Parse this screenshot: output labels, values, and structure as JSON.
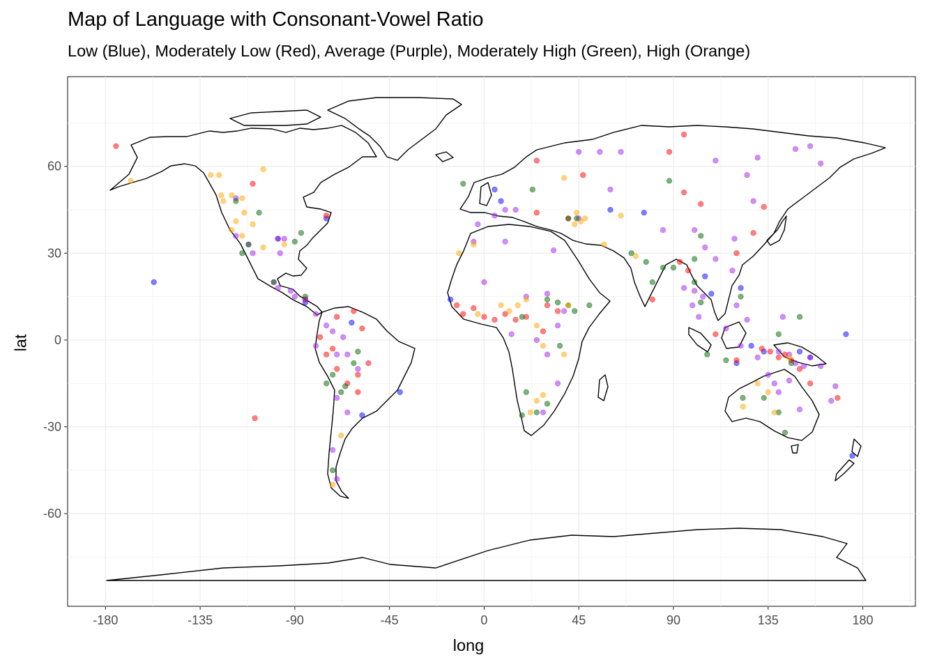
{
  "title": "Map of Language with Consonant-Vowel Ratio",
  "subtitle": "Low (Blue), Moderately Low (Red), Average (Purple), Moderately High (Green), High (Orange)",
  "chart_data": {
    "type": "scatter",
    "xlabel": "long",
    "ylabel": "lat",
    "xlim": [
      -198,
      205
    ],
    "ylim": [
      -92,
      91
    ],
    "xticks": [
      -180,
      -135,
      -90,
      -45,
      0,
      45,
      90,
      135,
      180
    ],
    "yticks": [
      -60,
      -30,
      0,
      30,
      60
    ],
    "xtick_labels": [
      "-180",
      "-135",
      "-90",
      "-45",
      "0",
      "45",
      "90",
      "135",
      "180"
    ],
    "ytick_labels": [
      "-60",
      "-30",
      "0",
      "30",
      "60"
    ],
    "grid": true,
    "colors": {
      "Low": "#0000ff",
      "Moderately Low": "#ff0000",
      "Average": "#a020f0",
      "Moderately High": "#006400",
      "High": "#ffa500"
    },
    "series": [
      {
        "category": "Low",
        "points": [
          [
            -157,
            20
          ],
          [
            -58,
            -26
          ],
          [
            -40,
            -18
          ],
          [
            -85,
            13
          ],
          [
            -63,
            6
          ],
          [
            5,
            52
          ],
          [
            8,
            48
          ],
          [
            -16,
            14
          ],
          [
            76,
            44
          ],
          [
            105,
            22
          ],
          [
            108,
            16
          ],
          [
            120,
            -8
          ],
          [
            127,
            -2
          ],
          [
            133,
            -4
          ],
          [
            150,
            -4
          ],
          [
            155,
            -6
          ],
          [
            172,
            2
          ],
          [
            175,
            -40
          ],
          [
            122,
            18
          ],
          [
            -75,
            42
          ],
          [
            -98,
            35
          ],
          [
            60,
            45
          ]
        ]
      },
      {
        "category": "Moderately Low",
        "points": [
          [
            -175,
            67
          ],
          [
            -110,
            54
          ],
          [
            -75,
            43
          ],
          [
            -109,
            -27
          ],
          [
            -70,
            8
          ],
          [
            -62,
            10
          ],
          [
            -58,
            4
          ],
          [
            -75,
            -5
          ],
          [
            -70,
            -10
          ],
          [
            -60,
            -12
          ],
          [
            -65,
            -15
          ],
          [
            -55,
            -8
          ],
          [
            -72,
            -3
          ],
          [
            25,
            62
          ],
          [
            47,
            57
          ],
          [
            95,
            71
          ],
          [
            88,
            65
          ],
          [
            95,
            51
          ],
          [
            103,
            47
          ],
          [
            128,
            37
          ],
          [
            133,
            46
          ],
          [
            120,
            30
          ],
          [
            80,
            14
          ],
          [
            93,
            27
          ],
          [
            97,
            24
          ],
          [
            -10,
            9
          ],
          [
            0,
            8
          ],
          [
            5,
            7
          ],
          [
            10,
            9
          ],
          [
            20,
            8
          ],
          [
            30,
            12
          ],
          [
            28,
            3
          ],
          [
            35,
            10
          ],
          [
            -13,
            12
          ],
          [
            -5,
            11
          ],
          [
            15,
            7
          ],
          [
            120,
            -7
          ],
          [
            132,
            -3
          ],
          [
            136,
            -4
          ],
          [
            140,
            -6
          ],
          [
            143,
            -5
          ],
          [
            146,
            -7
          ],
          [
            150,
            -10
          ],
          [
            168,
            -20
          ],
          [
            25,
            44
          ],
          [
            40,
            42
          ],
          [
            -85,
            14
          ],
          [
            -78,
            1
          ],
          [
            -60,
            -18
          ],
          [
            110,
            2
          ],
          [
            155,
            -15
          ]
        ]
      },
      {
        "category": "Average",
        "points": [
          [
            -118,
            36
          ],
          [
            -112,
            33
          ],
          [
            -98,
            35
          ],
          [
            -95,
            35
          ],
          [
            -100,
            20
          ],
          [
            -98,
            18
          ],
          [
            -92,
            17
          ],
          [
            -90,
            15
          ],
          [
            -85,
            14
          ],
          [
            -80,
            9
          ],
          [
            -75,
            5
          ],
          [
            -72,
            3
          ],
          [
            -70,
            -5
          ],
          [
            -65,
            -5
          ],
          [
            -60,
            -10
          ],
          [
            -70,
            -20
          ],
          [
            -65,
            -25
          ],
          [
            -72,
            -38
          ],
          [
            -70,
            -48
          ],
          [
            45,
            65
          ],
          [
            55,
            65
          ],
          [
            65,
            65
          ],
          [
            110,
            62
          ],
          [
            130,
            63
          ],
          [
            148,
            66
          ],
          [
            155,
            67
          ],
          [
            160,
            61
          ],
          [
            125,
            57
          ],
          [
            128,
            48
          ],
          [
            45,
            42
          ],
          [
            60,
            52
          ],
          [
            85,
            38
          ],
          [
            100,
            38
          ],
          [
            105,
            32
          ],
          [
            110,
            28
          ],
          [
            118,
            24
          ],
          [
            95,
            18
          ],
          [
            100,
            17
          ],
          [
            104,
            15
          ],
          [
            99,
            12
          ],
          [
            102,
            8
          ],
          [
            115,
            4
          ],
          [
            125,
            7
          ],
          [
            120,
            12
          ],
          [
            0,
            20
          ],
          [
            20,
            15
          ],
          [
            30,
            16
          ],
          [
            35,
            5
          ],
          [
            38,
            10
          ],
          [
            13,
            2
          ],
          [
            25,
            0
          ],
          [
            30,
            -5
          ],
          [
            35,
            -15
          ],
          [
            28,
            -25
          ],
          [
            -3,
            40
          ],
          [
            5,
            43
          ],
          [
            10,
            45
          ],
          [
            15,
            45
          ],
          [
            -5,
            34
          ],
          [
            10,
            34
          ],
          [
            33,
            31
          ],
          [
            122,
            -2
          ],
          [
            130,
            -6
          ],
          [
            140,
            -4
          ],
          [
            145,
            -5
          ],
          [
            148,
            -8
          ],
          [
            152,
            -9
          ],
          [
            155,
            -6
          ],
          [
            160,
            -9
          ],
          [
            167,
            -16
          ],
          [
            165,
            -21
          ],
          [
            135,
            -12
          ],
          [
            140,
            -18
          ],
          [
            145,
            -14
          ],
          [
            150,
            -24
          ],
          [
            119,
            35
          ],
          [
            -118,
            49
          ],
          [
            -97,
            30
          ],
          [
            -110,
            30
          ],
          [
            -80,
            -2
          ],
          [
            -67,
            1
          ],
          [
            138,
            -15
          ],
          [
            142,
            8
          ]
        ]
      },
      {
        "category": "Moderately High",
        "points": [
          [
            -115,
            30
          ],
          [
            -112,
            33
          ],
          [
            -107,
            44
          ],
          [
            -90,
            34
          ],
          [
            -87,
            37
          ],
          [
            -118,
            48
          ],
          [
            -100,
            20
          ],
          [
            -85,
            15
          ],
          [
            -72,
            -12
          ],
          [
            -68,
            -18
          ],
          [
            -66,
            -16
          ],
          [
            -62,
            -8
          ],
          [
            -60,
            -4
          ],
          [
            -72,
            -45
          ],
          [
            23,
            52
          ],
          [
            -10,
            54
          ],
          [
            40,
            42
          ],
          [
            44,
            42
          ],
          [
            88,
            55
          ],
          [
            103,
            36
          ],
          [
            70,
            30
          ],
          [
            77,
            27
          ],
          [
            80,
            20
          ],
          [
            85,
            25
          ],
          [
            90,
            25
          ],
          [
            100,
            20
          ],
          [
            103,
            13
          ],
          [
            122,
            15
          ],
          [
            18,
            8
          ],
          [
            30,
            14
          ],
          [
            35,
            13
          ],
          [
            40,
            12
          ],
          [
            43,
            10
          ],
          [
            50,
            12
          ],
          [
            36,
            -2
          ],
          [
            20,
            -18
          ],
          [
            18,
            -26
          ],
          [
            25,
            -25
          ],
          [
            30,
            -22
          ],
          [
            123,
            -20
          ],
          [
            133,
            -20
          ],
          [
            140,
            -25
          ],
          [
            143,
            -32
          ],
          [
            115,
            -7
          ],
          [
            140,
            2
          ],
          [
            150,
            8
          ],
          [
            -75,
            -15
          ],
          [
            106,
            -5
          ],
          [
            100,
            28
          ],
          [
            146,
            -8
          ]
        ]
      },
      {
        "category": "High",
        "points": [
          [
            -168,
            55
          ],
          [
            -130,
            57
          ],
          [
            -125,
            50
          ],
          [
            -124,
            48
          ],
          [
            -120,
            50
          ],
          [
            -115,
            49
          ],
          [
            -114,
            44
          ],
          [
            -118,
            41
          ],
          [
            -105,
            59
          ],
          [
            -105,
            32
          ],
          [
            -120,
            38
          ],
          [
            -95,
            33
          ],
          [
            -68,
            -33
          ],
          [
            -72,
            -50
          ],
          [
            -5,
            33
          ],
          [
            -12,
            30
          ],
          [
            12,
            10
          ],
          [
            20,
            14
          ],
          [
            16,
            12
          ],
          [
            8,
            12
          ],
          [
            -3,
            9
          ],
          [
            25,
            5
          ],
          [
            28,
            -2
          ],
          [
            38,
            -5
          ],
          [
            22,
            -25
          ],
          [
            28,
            -19
          ],
          [
            25,
            -21
          ],
          [
            44,
            44
          ],
          [
            46,
            41
          ],
          [
            48,
            42
          ],
          [
            43,
            40
          ],
          [
            38,
            56
          ],
          [
            57,
            33
          ],
          [
            72,
            29
          ],
          [
            65,
            43
          ],
          [
            130,
            -15
          ],
          [
            135,
            -18
          ],
          [
            138,
            -25
          ],
          [
            145,
            -6
          ],
          [
            123,
            -23
          ],
          [
            -110,
            40
          ],
          [
            -115,
            36
          ],
          [
            -126,
            57
          ],
          [
            40,
            12
          ]
        ]
      }
    ]
  }
}
